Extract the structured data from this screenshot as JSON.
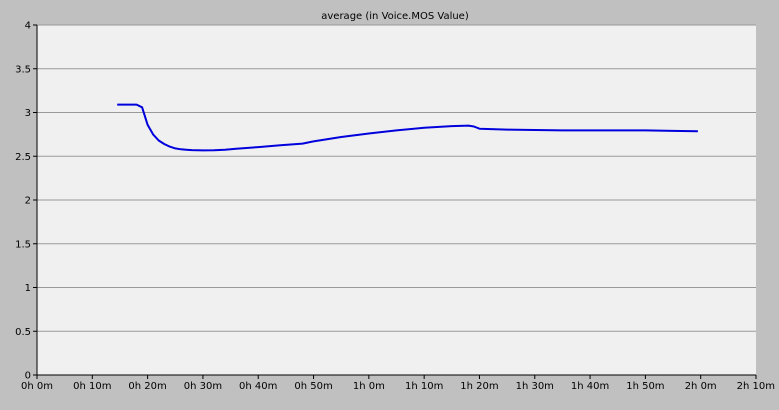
{
  "chart_data": {
    "type": "line",
    "title": "average (in Voice.MOS Value)",
    "xlabel": "",
    "ylabel": "",
    "xlim": [
      0,
      130
    ],
    "ylim": [
      0,
      4
    ],
    "x_unit": "minutes",
    "x_ticks": [
      0,
      10,
      20,
      30,
      40,
      50,
      60,
      70,
      80,
      90,
      100,
      110,
      120,
      130
    ],
    "x_tick_labels": [
      "0h 0m",
      "0h 10m",
      "0h 20m",
      "0h 30m",
      "0h 40m",
      "0h 50m",
      "1h 0m",
      "1h 10m",
      "1h 20m",
      "1h 30m",
      "1h 40m",
      "1h 50m",
      "2h 0m",
      "2h 10m"
    ],
    "y_ticks": [
      0,
      0.5,
      1,
      1.5,
      2,
      2.5,
      3,
      3.5,
      4
    ],
    "y_tick_labels": [
      "0",
      "0.5",
      "1",
      "1.5",
      "2",
      "2.5",
      "3",
      "3.5",
      "4"
    ],
    "grid": true,
    "legend": "none",
    "colors": {
      "background": "#c0c0c0",
      "plot_area": "#f0f0f0",
      "grid": "#999999",
      "line": "#0000dd"
    },
    "series": [
      {
        "x": [
          14.5,
          16,
          17,
          18,
          19,
          20,
          21,
          22,
          23,
          24,
          25,
          26,
          27,
          28,
          29,
          30,
          32,
          34,
          36,
          40,
          44,
          48,
          50,
          55,
          60,
          65,
          70,
          75,
          78,
          79,
          80,
          85,
          90,
          95,
          100,
          105,
          110,
          115,
          119.5
        ],
        "y": [
          3.09,
          3.09,
          3.09,
          3.09,
          3.06,
          2.86,
          2.75,
          2.68,
          2.64,
          2.61,
          2.59,
          2.58,
          2.575,
          2.57,
          2.568,
          2.567,
          2.568,
          2.575,
          2.585,
          2.605,
          2.625,
          2.645,
          2.67,
          2.72,
          2.76,
          2.795,
          2.825,
          2.845,
          2.85,
          2.84,
          2.815,
          2.805,
          2.8,
          2.795,
          2.795,
          2.795,
          2.795,
          2.79,
          2.785
        ]
      }
    ]
  }
}
